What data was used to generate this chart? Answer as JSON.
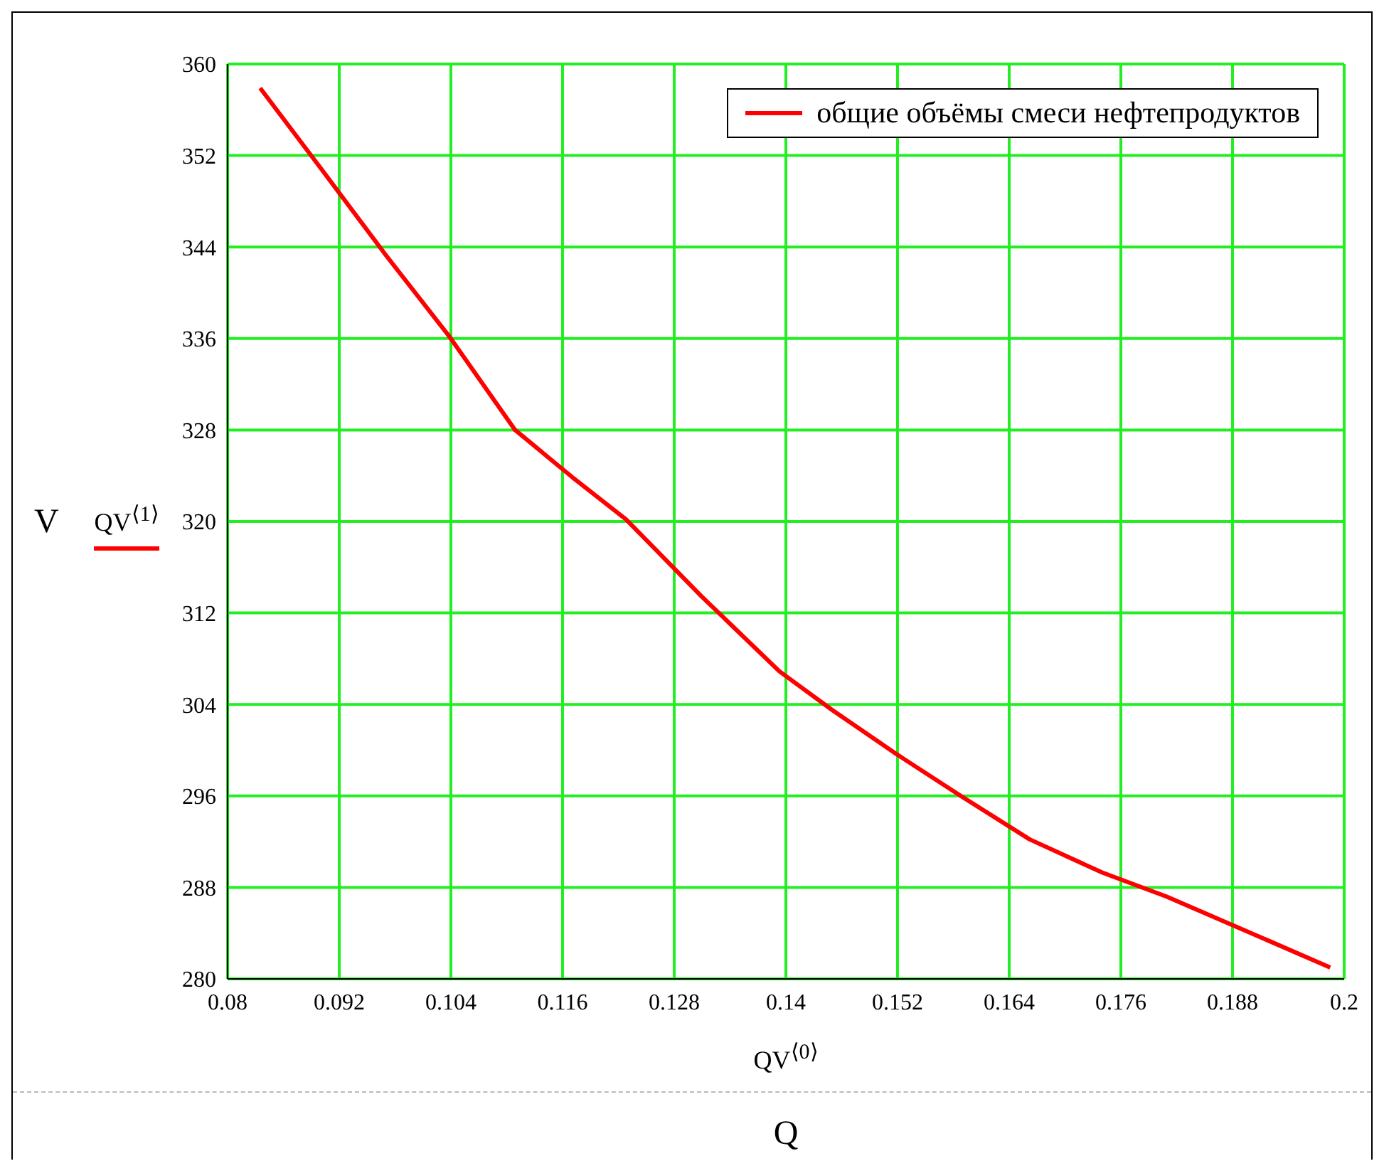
{
  "chart_data": {
    "type": "line",
    "xlabel": "QV$^{⟨0⟩}$",
    "ylabel": "QV$^{⟨1⟩}$",
    "annotations": [
      "V",
      "Q"
    ],
    "x": [
      0.0835,
      0.09,
      0.097,
      0.1039,
      0.1109,
      0.117,
      0.1228,
      0.131,
      0.1393,
      0.145,
      0.1518,
      0.159,
      0.1662,
      0.174,
      0.1809,
      0.19,
      0.1985
    ],
    "series": [
      {
        "name": "общие объёмы смеси нефтепродуктов",
        "color": "#ff0000",
        "values": [
          357.9,
          350.9,
          343.3,
          336.1,
          328.0,
          323.9,
          320.2,
          313.4,
          306.9,
          303.5,
          299.7,
          295.9,
          292.2,
          289.3,
          287.2,
          284.0,
          281.0
        ]
      }
    ],
    "xlim": [
      0.08,
      0.2
    ],
    "xticks": [
      0.08,
      0.092,
      0.104,
      0.116,
      0.128,
      0.14,
      0.152,
      0.164,
      0.176,
      0.188,
      0.2
    ],
    "ylim": [
      280,
      360
    ],
    "yticks": [
      280,
      288,
      296,
      304,
      312,
      320,
      328,
      336,
      344,
      352,
      360
    ],
    "grid": true,
    "legend": "top right",
    "line_style": "solid",
    "marker": "none"
  }
}
